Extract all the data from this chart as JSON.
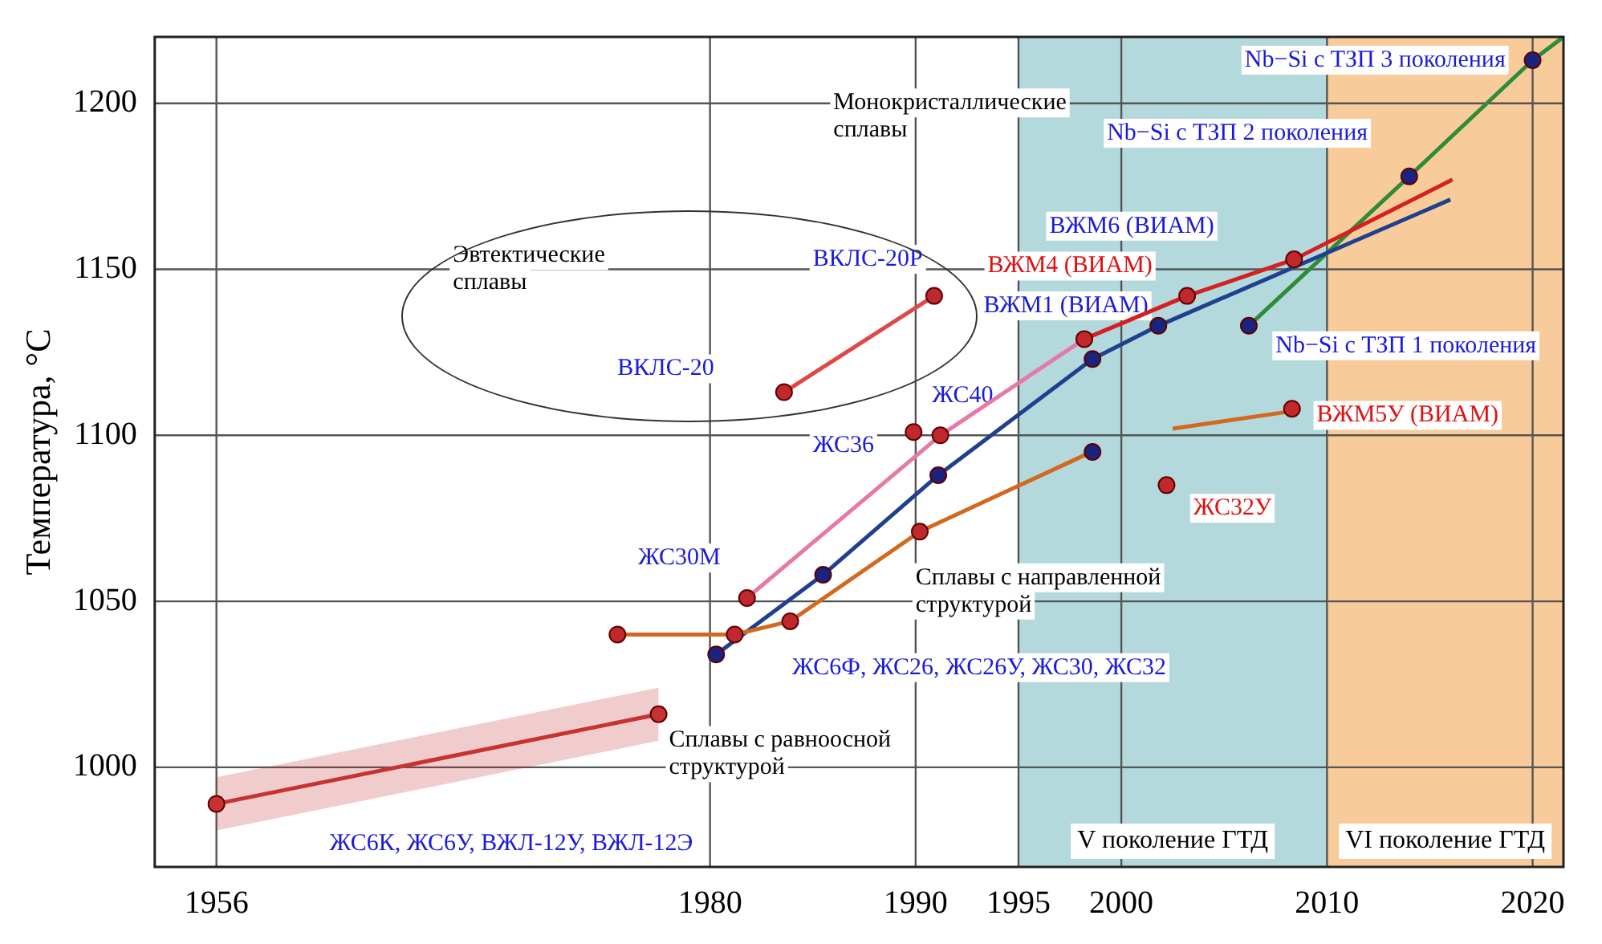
{
  "chart_data": {
    "type": "line",
    "ylabel": "Температура, °C",
    "xlim": [
      1953,
      2021.5
    ],
    "xticks": [
      1956,
      1980,
      1990,
      1995,
      2000,
      2010,
      2020
    ],
    "ylim": [
      970,
      1220
    ],
    "yticks": [
      1000,
      1050,
      1100,
      1150,
      1200
    ],
    "grid": true,
    "legend": false,
    "series": [
      {
        "type": "line",
        "marker": "circle",
        "color": "#c83232",
        "x": [
          1956,
          1977.5
        ],
        "values": [
          989,
          1016
        ],
        "lower": [
          981,
          1008
        ],
        "upper": [
          997,
          1024
        ]
      },
      {
        "type": "line",
        "marker": "none",
        "color": "#d2691e",
        "x": [
          1975.5,
          1981.2,
          1983.9,
          1990.2,
          1998.9,
          2000,
          2002.5,
          2008
        ],
        "values": [
          1040,
          1040,
          1044,
          1071,
          1096,
          null,
          1102,
          1107
        ]
      },
      {
        "type": "line",
        "marker": "none",
        "color": "#e04848",
        "x": [
          1983.6,
          1990.9
        ],
        "values": [
          1113,
          1142
        ]
      },
      {
        "type": "line",
        "marker": "none",
        "color": "#e878a8",
        "x": [
          1981.8,
          1991.2,
          1998.2
        ],
        "values": [
          1051,
          1100,
          1129
        ]
      },
      {
        "type": "line",
        "marker": "none",
        "color": "#d42020",
        "x": [
          1998.2,
          2003.2,
          2008.4,
          2016.1
        ],
        "values": [
          1129,
          1142,
          1153,
          1177
        ]
      },
      {
        "type": "line",
        "marker": "none",
        "color": "#1f3f8f",
        "x": [
          1980.3,
          1985.5,
          1991.1,
          1998.6,
          2001.8,
          2016
        ],
        "values": [
          1034,
          1058,
          1088,
          1123,
          1133,
          1171
        ]
      },
      {
        "type": "line",
        "marker": "none",
        "color": "#2e8b3a",
        "x": [
          2006.2,
          2014,
          2020,
          2021.5
        ],
        "values": [
          1133,
          1178,
          1213,
          1220
        ]
      },
      {
        "type": "scatter",
        "marker": "circle",
        "color": "#c0282d",
        "x": [
          1975.5,
          1981.2,
          1983.9,
          1990.2,
          2002.2,
          2008.3,
          1983.6,
          1990.9,
          1981.8,
          1989.9,
          1991.2,
          1998.2,
          2003.2,
          2008.4
        ],
        "values": [
          1040,
          1040,
          1044,
          1071,
          1085,
          1108,
          1113,
          1142,
          1051,
          1101,
          1100,
          1129,
          1142,
          1153
        ]
      },
      {
        "type": "scatter",
        "marker": "circle",
        "color": "#1a237e",
        "x": [
          1980.3,
          1985.5,
          1991.1,
          1998.6,
          2001.8,
          1998.6,
          2006.2,
          2014,
          2020
        ],
        "values": [
          1034,
          1058,
          1088,
          1123,
          1133,
          1095,
          1133,
          1178,
          1213
        ]
      }
    ],
    "bands": [
      {
        "axis": "x",
        "from": 1995,
        "to": 2010,
        "label": "V поколение ГТД",
        "color": "#b3d9dc"
      },
      {
        "axis": "x",
        "from": 2010,
        "to": 2021.5,
        "label": "VI поколение ГТД",
        "color": "#f7cb9a"
      }
    ],
    "annotations": [
      "Эвтектические\nсплавы",
      "ВКЛС-20",
      "ВКЛС-20Р",
      "Монокристаллические\nсплавы",
      "ЖС30М",
      "ЖС36",
      "ЖС40",
      "ВЖМ1 (ВИАМ)",
      "ВЖМ4 (ВИАМ)",
      "ВЖМ6 (ВИАМ)",
      "Nb−Si с ТЗП 1 поколения",
      "Nb−Si с ТЗП 2 поколения",
      "Nb−Si с ТЗП 3 поколения",
      "ВЖМ5У (ВИАМ)",
      "ЖС32У",
      "Сплавы с направленной\nструктурой",
      "ЖС6Ф, ЖС26, ЖС26У, ЖС30, ЖС32",
      "Сплавы с равноосной\nструктурой",
      "ЖС6К, ЖС6У, ВЖЛ-12У, ВЖЛ-12Э"
    ]
  }
}
